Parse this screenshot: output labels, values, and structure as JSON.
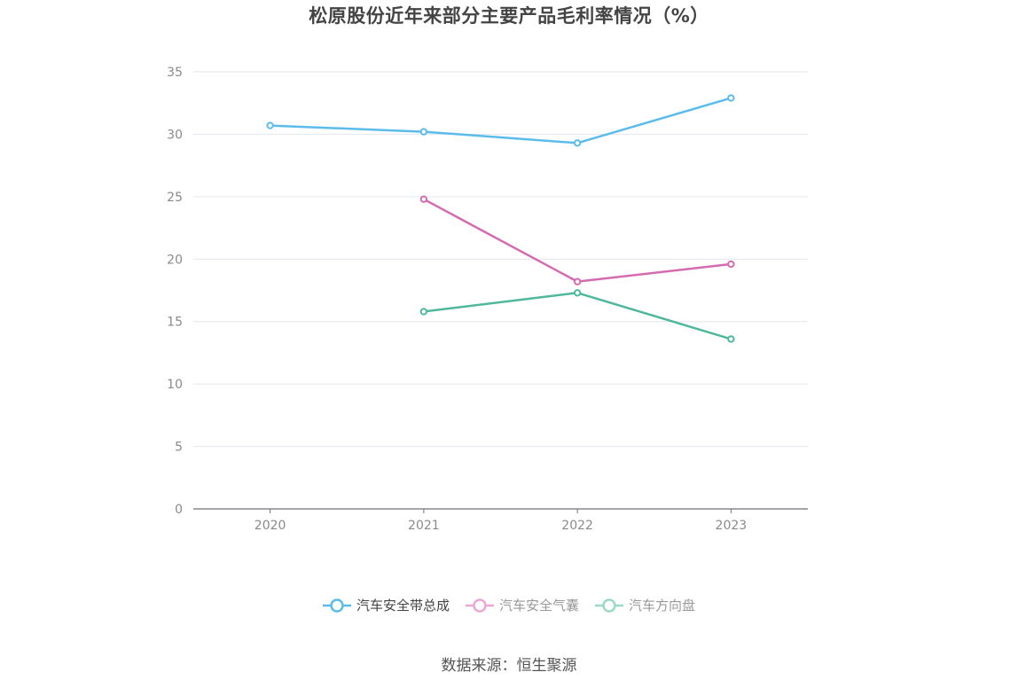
{
  "chart_data": {
    "type": "line",
    "title": "松原股份近年来部分主要产品毛利率情况（%）",
    "categories": [
      "2020",
      "2021",
      "2022",
      "2023"
    ],
    "ylim": [
      0,
      35
    ],
    "yticks": [
      0,
      5,
      10,
      15,
      20,
      25,
      30,
      35
    ],
    "grid": true,
    "legend_position": "bottom",
    "series": [
      {
        "name": "汽车安全带总成",
        "color": "#5bbcec",
        "values": [
          30.7,
          30.2,
          29.3,
          32.9
        ]
      },
      {
        "name": "汽车安全气囊",
        "color": "#d46bb0",
        "values": [
          null,
          24.8,
          18.2,
          19.6
        ]
      },
      {
        "name": "汽车方向盘",
        "color": "#4fb89c",
        "values": [
          null,
          15.8,
          17.3,
          13.6
        ]
      }
    ]
  },
  "legend": {
    "items": [
      {
        "label": "汽车安全带总成",
        "color": "#5bbcec"
      },
      {
        "label": "汽车安全气囊",
        "color": "#e9a9d4"
      },
      {
        "label": "汽车方向盘",
        "color": "#9ad9c6"
      }
    ]
  },
  "footer": {
    "source": "数据来源：恒生聚源"
  }
}
